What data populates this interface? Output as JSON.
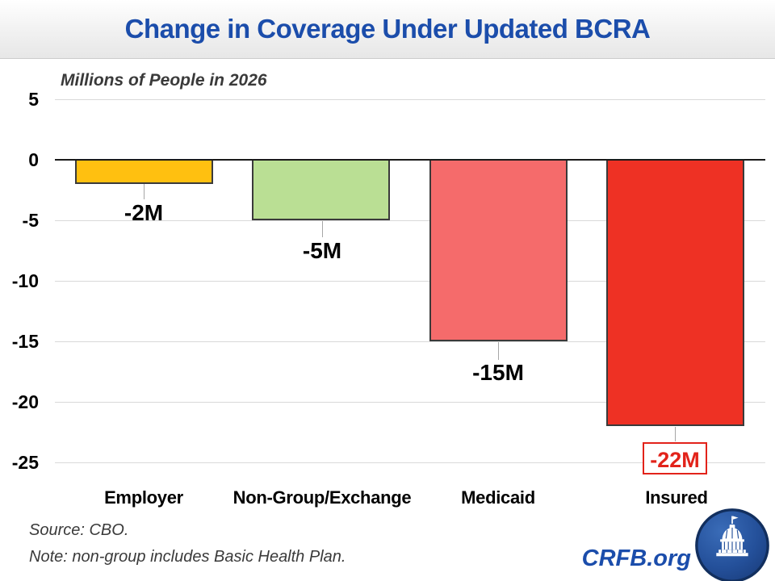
{
  "title": "Change in Coverage Under Updated BCRA",
  "subtitle": "Millions of People in 2026",
  "footer": {
    "source_line1": "Source: CBO.",
    "source_line2": "Note: non-group includes Basic Health Plan.",
    "brand": "CRFB.org"
  },
  "colors": {
    "title_blue": "#1b4dab",
    "brand_blue": "#1b4dab",
    "grid_gray": "#d9d9d9",
    "zero_axis": "#1a1a1a",
    "highlight_red": "#e2231a"
  },
  "chart_data": {
    "type": "bar",
    "title": "Change in Coverage Under Updated BCRA",
    "subtitle": "Millions of People in 2026",
    "ylabel": "Millions of People in 2026",
    "categories": [
      "Employer",
      "Non-Group/Exchange",
      "Medicaid",
      "Insured"
    ],
    "values": [
      -2,
      -5,
      -15,
      -22
    ],
    "labels": [
      "-2M",
      "-5M",
      "-15M",
      "-22M"
    ],
    "bar_colors": [
      "#ffc010",
      "#badf94",
      "#f56b6b",
      "#ee3124"
    ],
    "highlight_index": 3,
    "ylim": [
      -25,
      5
    ],
    "yticks": [
      5,
      0,
      -5,
      -10,
      -15,
      -20,
      -25
    ],
    "ytick_labels": [
      "5",
      "0",
      "-5",
      "-10",
      "-15",
      "-20",
      "-25"
    ],
    "grid": true,
    "legend": false,
    "source": "CBO"
  }
}
